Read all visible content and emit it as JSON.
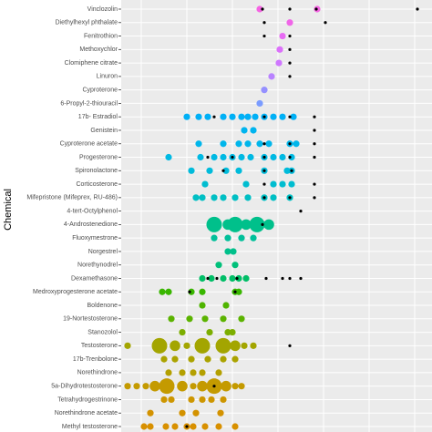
{
  "chart_data": {
    "type": "scatter",
    "y_label": "Chemical",
    "categories": [
      "Vinclozolin",
      "Diethylhexyl phthalate",
      "Fenitrothion",
      "Methoxychlor",
      "Clomiphene citrate",
      "Linuron",
      "Cyproterone",
      "6-Propyl-2-thiouracil",
      "17b- Estradiol",
      "Genistein",
      "Cyproterone acetate",
      "Progesterone",
      "Spironolactone",
      "Corticosterone",
      "Mifepristone (Mifeprex, RU-486)",
      "4-tert-Octylphenol",
      "4-Androstenedione",
      "Fluoxymestrone",
      "Norgestrel",
      "Norethynodrel",
      "Dexamethasone",
      "Medroxyprogesterone acetate",
      "Boldenone",
      "19-Nortestosterone",
      "Stanozolol",
      "Testosterone",
      "17b-Trenbolone",
      "Norethindrone",
      "5a-Dihydrotestosterone",
      "Tetrahydrogestrinone",
      "Norethindrone acetate",
      "Methyl testosterone"
    ],
    "colors": [
      "#f564e3",
      "#f066e8",
      "#e76bf3",
      "#dc71fa",
      "#cf78ff",
      "#b983ff",
      "#9590ff",
      "#7b9cff",
      "#00b0f6",
      "#00b4ef",
      "#00b6eb",
      "#00b9e3",
      "#00bbdb",
      "#00bdd0",
      "#00bfc4",
      "#00c0b8",
      "#00c08b",
      "#00c09a",
      "#00c08b",
      "#00c07a",
      "#00be67",
      "#39b600",
      "#4fb400",
      "#5bb300",
      "#7cae00",
      "#a3a500",
      "#aba300",
      "#b4a000",
      "#c49a00",
      "#cd9600",
      "#d39200",
      "#d89000"
    ],
    "points": [
      {
        "x": [
          152,
          215
        ],
        "size": [
          1,
          1
        ]
      },
      {
        "x": [
          185
        ],
        "size": [
          1
        ]
      },
      {
        "x": [
          177
        ],
        "size": [
          1
        ]
      },
      {
        "x": [
          174
        ],
        "size": [
          1
        ]
      },
      {
        "x": [
          173
        ],
        "size": [
          1
        ]
      },
      {
        "x": [
          165
        ],
        "size": [
          1
        ]
      },
      {
        "x": [
          157
        ],
        "size": [
          1
        ]
      },
      {
        "x": [
          152
        ],
        "size": [
          1
        ]
      },
      {
        "x": [
          72,
          85,
          95,
          112,
          122,
          132,
          139,
          147,
          157,
          167,
          177,
          189
        ],
        "size": [
          1,
          1,
          1,
          1,
          1,
          1,
          1,
          1,
          1,
          1,
          1,
          1
        ]
      },
      {
        "x": [
          135,
          145
        ],
        "size": [
          1,
          1
        ]
      },
      {
        "x": [
          85,
          112,
          129,
          139,
          152,
          162,
          185,
          192
        ],
        "size": [
          1,
          1,
          1,
          1,
          1,
          1,
          1,
          1
        ]
      },
      {
        "x": [
          52,
          87,
          102,
          112,
          122,
          132,
          142,
          157,
          167,
          177,
          187
        ],
        "size": [
          1,
          1,
          1,
          1,
          1,
          1,
          1,
          1,
          1,
          1,
          1
        ]
      },
      {
        "x": [
          77,
          97,
          115,
          129,
          157,
          182,
          187
        ],
        "size": [
          1,
          1,
          1,
          1,
          1,
          1,
          1
        ]
      },
      {
        "x": [
          92,
          137,
          167,
          177,
          187
        ],
        "size": [
          1,
          1,
          1,
          1,
          1
        ]
      },
      {
        "x": [
          82,
          89,
          102,
          112,
          125,
          139,
          157,
          167,
          185
        ],
        "size": [
          1,
          1,
          1,
          1,
          1,
          1,
          1,
          1,
          1
        ]
      },
      {
        "x": [],
        "size": []
      },
      {
        "x": [
          102,
          117,
          125,
          137,
          149,
          162
        ],
        "size": [
          3,
          2,
          3,
          2,
          3,
          2
        ]
      },
      {
        "x": [
          102,
          117,
          132,
          145
        ],
        "size": [
          1,
          1,
          1,
          1
        ]
      },
      {
        "x": [
          117,
          123
        ],
        "size": [
          1,
          1
        ]
      },
      {
        "x": [
          107,
          125
        ],
        "size": [
          1,
          1
        ]
      },
      {
        "x": [
          89,
          99,
          112,
          122,
          129,
          137
        ],
        "size": [
          1,
          1,
          1,
          1,
          1,
          1
        ]
      },
      {
        "x": [
          45,
          52,
          77,
          89,
          125,
          129
        ],
        "size": [
          1,
          1,
          1,
          1,
          1,
          1
        ]
      },
      {
        "x": [
          89,
          115
        ],
        "size": [
          1,
          1
        ]
      },
      {
        "x": [
          55,
          75,
          92,
          112,
          132
        ],
        "size": [
          1,
          1,
          1,
          1,
          1
        ]
      },
      {
        "x": [
          67,
          97,
          117,
          122
        ],
        "size": [
          1,
          1,
          1,
          1
        ]
      },
      {
        "x": [
          7,
          42,
          59,
          72,
          89,
          112,
          125,
          135,
          145
        ],
        "size": [
          1,
          3,
          2,
          1,
          3,
          3,
          2,
          1,
          1
        ]
      },
      {
        "x": [
          47,
          59,
          77,
          95,
          112,
          125
        ],
        "size": [
          1,
          1,
          1,
          1,
          1,
          1
        ]
      },
      {
        "x": [
          52,
          67,
          79,
          89,
          107
        ],
        "size": [
          1,
          1,
          1,
          1,
          1
        ]
      },
      {
        "x": [
          7,
          17,
          27,
          37,
          50,
          67,
          79,
          89,
          102,
          115,
          125,
          132
        ],
        "size": [
          1,
          1,
          1,
          2,
          3,
          2,
          1,
          2,
          3,
          2,
          1,
          1
        ]
      },
      {
        "x": [
          47,
          55,
          77,
          89,
          99,
          112
        ],
        "size": [
          1,
          1,
          1,
          1,
          1,
          1
        ]
      },
      {
        "x": [
          32,
          67,
          82,
          109
        ],
        "size": [
          1,
          1,
          1,
          1
        ]
      },
      {
        "x": [
          25,
          32,
          49,
          59,
          72,
          79,
          92,
          107,
          125
        ],
        "size": [
          1,
          1,
          1,
          1,
          1,
          1,
          1,
          1,
          1
        ]
      }
    ],
    "black_color": "#000000",
    "black_points": [
      [
        155,
        185,
        214,
        325
      ],
      [
        157,
        224
      ],
      [
        157,
        185
      ],
      [
        185
      ],
      [
        185
      ],
      [
        185
      ],
      [],
      [],
      [
        102,
        157,
        185,
        212
      ],
      [
        212
      ],
      [
        157,
        185,
        212
      ],
      [
        95,
        122,
        157,
        185,
        212
      ],
      [
        112,
        157,
        187
      ],
      [
        157,
        212
      ],
      [
        157,
        185,
        212
      ],
      [
        197
      ],
      [
        155
      ],
      [],
      [],
      [],
      [
        95,
        105,
        127,
        159,
        177,
        185,
        197
      ],
      [
        75,
        125
      ],
      [],
      [],
      [],
      [
        185
      ],
      [],
      [],
      [
        102
      ],
      [],
      [],
      [
        72
      ]
    ],
    "xlim": [
      0,
      341
    ],
    "xticks": [
      22,
      72,
      122,
      172,
      222,
      272,
      322
    ],
    "grid": true
  }
}
